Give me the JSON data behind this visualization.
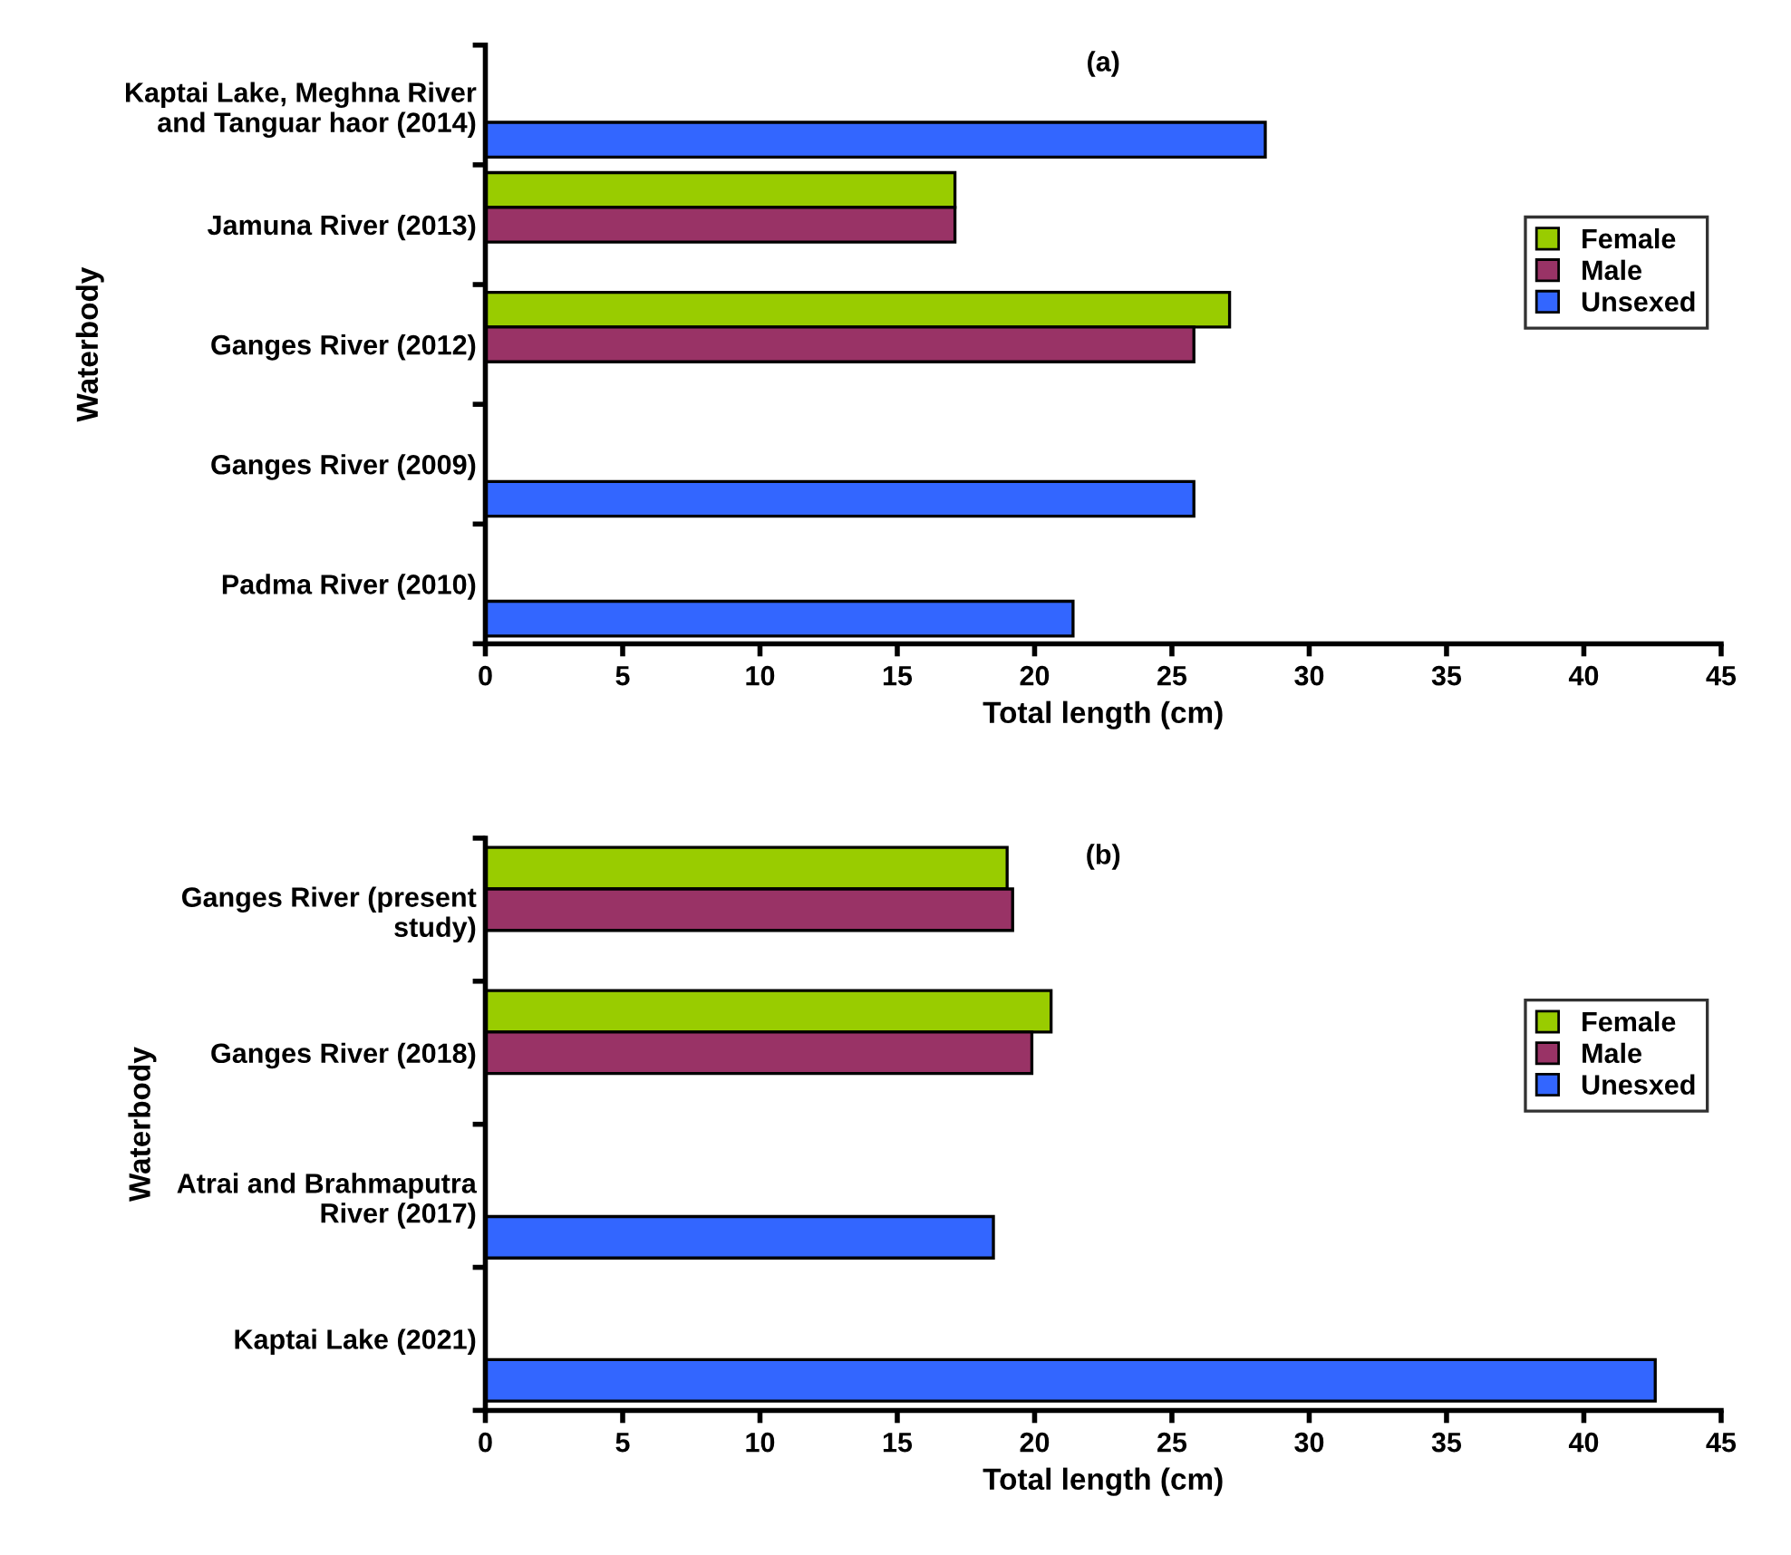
{
  "chart_data": [
    {
      "type": "bar",
      "orientation": "horizontal",
      "title": "(a)",
      "xlabel": "Total length (cm)",
      "ylabel": "Waterbody",
      "categories": [
        "Kaptai Lake, Meghna River\nand Tanguar haor (2014)",
        "Jamuna River (2013)",
        "Ganges River (2012)",
        "Ganges River (2009)",
        "Padma River (2010)"
      ],
      "series": [
        {
          "name": "Female",
          "color": "#99cc00",
          "values": [
            null,
            17.1,
            27.1,
            null,
            null
          ]
        },
        {
          "name": "Male",
          "color": "#993366",
          "values": [
            null,
            17.1,
            25.8,
            null,
            null
          ]
        },
        {
          "name": "Unsexed",
          "color": "#3366ff",
          "values": [
            28.4,
            null,
            null,
            25.8,
            21.4
          ]
        }
      ],
      "xlim": [
        0,
        45
      ],
      "xticks": [
        0,
        5,
        10,
        15,
        20,
        25,
        30,
        35,
        40,
        45
      ],
      "grid": false,
      "legend": "right"
    },
    {
      "type": "bar",
      "orientation": "horizontal",
      "title": "(b)",
      "xlabel": "Total length (cm)",
      "ylabel": "Waterbody",
      "categories": [
        "Ganges River (present\nstudy)",
        "Ganges River (2018)",
        "Atrai and Brahmaputra\nRiver (2017)",
        "Kaptai Lake (2021)"
      ],
      "series": [
        {
          "name": "Female",
          "color": "#99cc00",
          "values": [
            19.0,
            20.6,
            null,
            null
          ]
        },
        {
          "name": "Male",
          "color": "#993366",
          "values": [
            19.2,
            19.9,
            null,
            null
          ]
        },
        {
          "name": "Unesxed",
          "color": "#3366ff",
          "values": [
            null,
            null,
            18.5,
            42.6
          ]
        }
      ],
      "xlim": [
        0,
        45
      ],
      "xticks": [
        0,
        5,
        10,
        15,
        20,
        25,
        30,
        35,
        40,
        45
      ],
      "grid": false,
      "legend": "right"
    }
  ]
}
